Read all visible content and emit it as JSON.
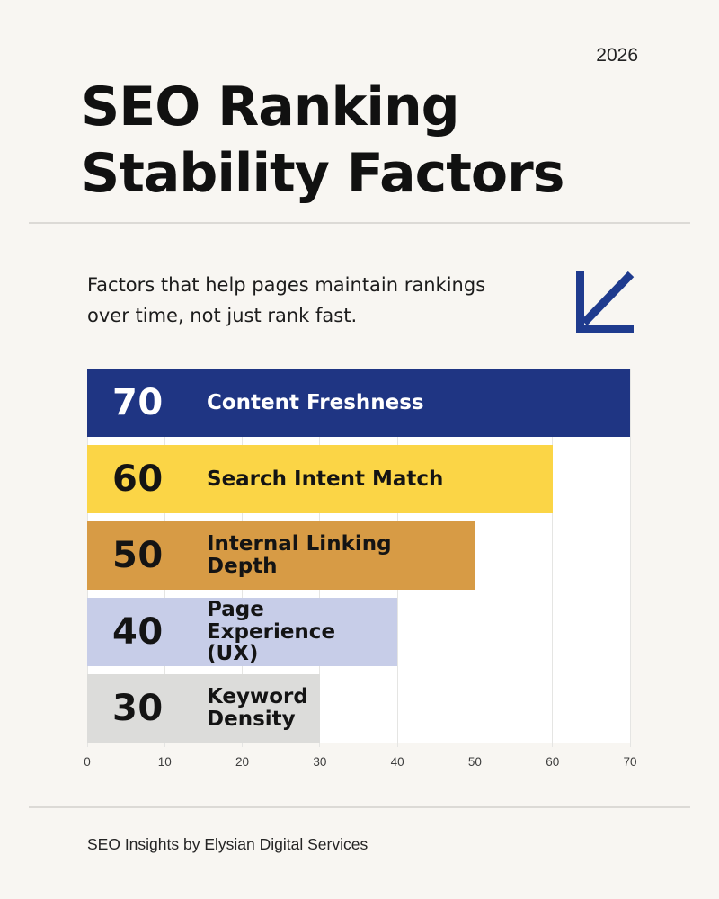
{
  "header": {
    "year": "2026",
    "title": "SEO Ranking\nStability Factors",
    "subtitle": "Factors that help pages maintain rankings\nover time, not just rank fast.",
    "icon": "arrow-down-left-icon",
    "accent_color": "#1f3b8e"
  },
  "footer": {
    "credit": "SEO Insights by Elysian Digital Services"
  },
  "chart_data": {
    "type": "bar",
    "orientation": "horizontal",
    "title": "SEO Ranking Stability Factors",
    "xlabel": "",
    "ylabel": "",
    "xlim": [
      0,
      70
    ],
    "x_ticks": [
      "0",
      "10",
      "20",
      "30",
      "40",
      "50",
      "60",
      "70"
    ],
    "grid": true,
    "legend": false,
    "categories": [
      "Content Freshness",
      "Search Intent Match",
      "Internal Linking Depth",
      "Page Experience (UX)",
      "Keyword Density"
    ],
    "values": [
      70,
      60,
      50,
      40,
      30
    ],
    "bars": [
      {
        "value": "70",
        "label_lines": [
          "Content Freshness"
        ],
        "bar_color": "#1f3583",
        "text_color": "#ffffff"
      },
      {
        "value": "60",
        "label_lines": [
          "Search Intent Match"
        ],
        "bar_color": "#fbd546",
        "text_color": "#141414"
      },
      {
        "value": "50",
        "label_lines": [
          "Internal Linking",
          "Depth"
        ],
        "bar_color": "#d79b45",
        "text_color": "#141414"
      },
      {
        "value": "40",
        "label_lines": [
          "Page Experience",
          "(UX)"
        ],
        "bar_color": "#c7cde8",
        "text_color": "#141414"
      },
      {
        "value": "30",
        "label_lines": [
          "Keyword",
          "Density"
        ],
        "bar_color": "#dcdcda",
        "text_color": "#141414"
      }
    ],
    "colors": {
      "plot_background": "#ffffff",
      "page_background": "#f8f6f2",
      "gridline": "#e5e5e3"
    }
  }
}
